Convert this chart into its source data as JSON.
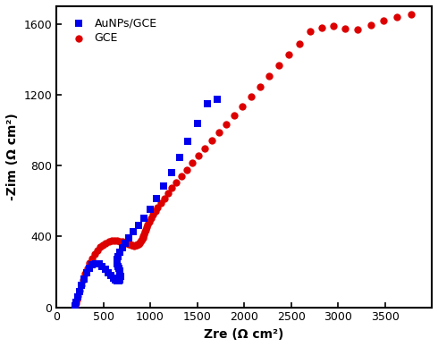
{
  "title": "",
  "xlabel": "Zre (Ω cm²)",
  "ylabel": "-Zim (Ω cm²)",
  "xlim": [
    100,
    4000
  ],
  "ylim": [
    0,
    1700
  ],
  "xticks": [
    0,
    500,
    1000,
    1500,
    2000,
    2500,
    3000,
    3500
  ],
  "yticks": [
    0,
    400,
    800,
    1200,
    1600
  ],
  "background_color": "#ffffff",
  "legend_labels": [
    "AuNPs/GCE",
    "GCE"
  ],
  "aunps_color": "#0000ee",
  "gce_color": "#dd0000",
  "aunps_marker": "s",
  "gce_marker": "o",
  "aunps_markersize": 5.5,
  "gce_markersize": 6.0,
  "aunps_x": [
    195,
    210,
    228,
    248,
    270,
    295,
    322,
    352,
    384,
    418,
    452,
    487,
    520,
    552,
    582,
    608,
    630,
    648,
    662,
    672,
    678,
    680,
    678,
    672,
    664,
    656,
    650,
    646,
    648,
    658,
    675,
    700,
    732,
    772,
    820,
    875,
    935,
    1000,
    1070,
    1145,
    1225,
    1310,
    1400,
    1500,
    1605,
    1715
  ],
  "aunps_y": [
    8,
    30,
    58,
    90,
    125,
    162,
    195,
    222,
    240,
    248,
    244,
    232,
    215,
    196,
    178,
    163,
    153,
    148,
    148,
    153,
    162,
    174,
    188,
    203,
    218,
    232,
    244,
    255,
    270,
    288,
    310,
    335,
    362,
    392,
    425,
    463,
    505,
    555,
    615,
    685,
    760,
    845,
    935,
    1040,
    1150,
    1175
  ],
  "gce_x": [
    195,
    205,
    218,
    232,
    248,
    265,
    284,
    305,
    328,
    352,
    378,
    406,
    435,
    465,
    496,
    527,
    558,
    590,
    620,
    650,
    678,
    705,
    730,
    754,
    775,
    795,
    812,
    828,
    842,
    855,
    867,
    878,
    888,
    897,
    905,
    913,
    920,
    927,
    935,
    943,
    952,
    962,
    975,
    990,
    1008,
    1028,
    1052,
    1080,
    1112,
    1148,
    1188,
    1232,
    1280,
    1332,
    1388,
    1448,
    1512,
    1580,
    1652,
    1728,
    1808,
    1892,
    1980,
    2072,
    2168,
    2268,
    2372,
    2480,
    2592,
    2708,
    2828,
    2952,
    3080,
    3212,
    3348,
    3488,
    3632,
    3780
  ],
  "gce_y": [
    8,
    22,
    42,
    65,
    92,
    122,
    155,
    188,
    220,
    250,
    278,
    302,
    323,
    340,
    354,
    364,
    371,
    375,
    377,
    376,
    374,
    370,
    365,
    360,
    356,
    352,
    350,
    349,
    350,
    352,
    355,
    359,
    364,
    370,
    377,
    385,
    393,
    403,
    414,
    426,
    439,
    453,
    468,
    485,
    503,
    522,
    543,
    566,
    590,
    616,
    644,
    674,
    706,
    740,
    776,
    814,
    854,
    896,
    940,
    986,
    1034,
    1084,
    1136,
    1190,
    1246,
    1304,
    1364,
    1426,
    1490,
    1556,
    1580,
    1590,
    1575,
    1570,
    1595,
    1620,
    1640,
    1655
  ]
}
